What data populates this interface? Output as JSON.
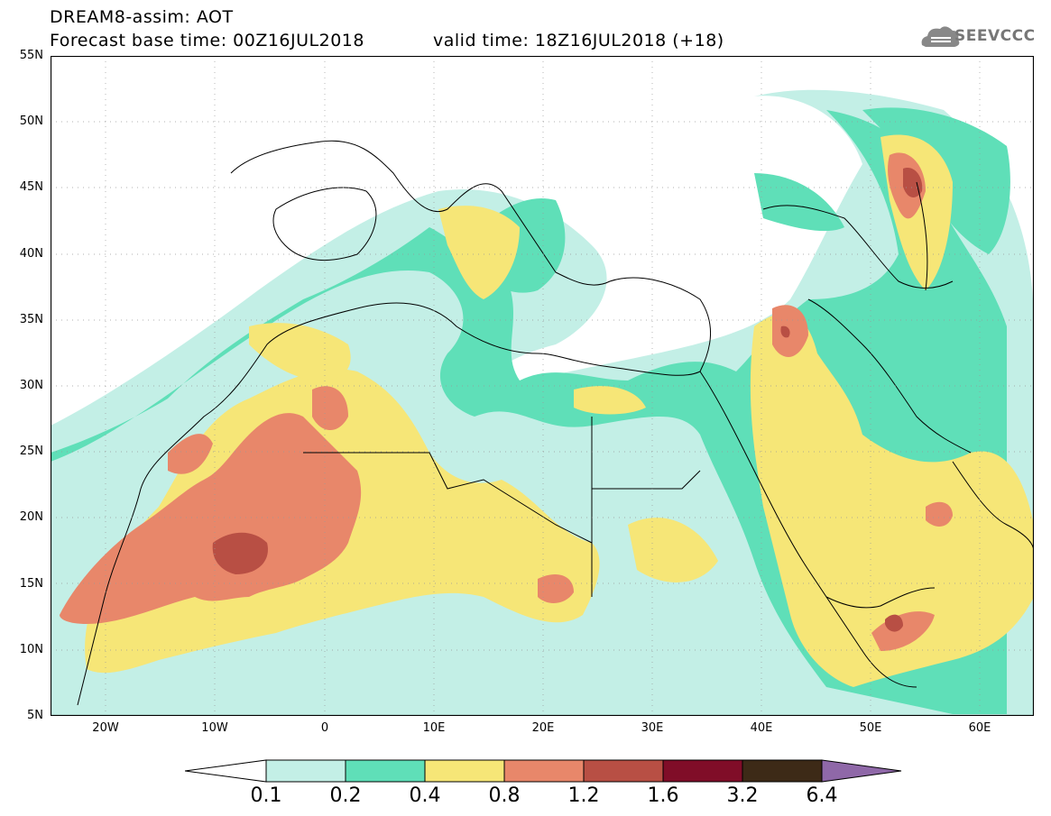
{
  "header": {
    "title_line1": "DREAM8-assim: AOT",
    "title_line2": "Forecast base time: 00Z16JUL2018",
    "valid_time": "valid time: 18Z16JUL2018 (+18)",
    "logo_text": "SEEVCCC"
  },
  "map": {
    "lat_labels": [
      "55N",
      "50N",
      "45N",
      "40N",
      "35N",
      "30N",
      "25N",
      "20N",
      "15N",
      "10N",
      "5N"
    ],
    "lon_labels": [
      "20W",
      "10W",
      "0",
      "10E",
      "20E",
      "30E",
      "40E",
      "50E",
      "60E"
    ]
  },
  "legend": {
    "labels": [
      "0.1",
      "0.2",
      "0.4",
      "0.8",
      "1.2",
      "1.6",
      "3.2",
      "6.4"
    ],
    "colors": [
      "#c3efe6",
      "#5fdfb8",
      "#f6e677",
      "#e8876a",
      "#b84f44",
      "#800d28",
      "#3d2a17",
      "#8f68a8"
    ]
  }
}
